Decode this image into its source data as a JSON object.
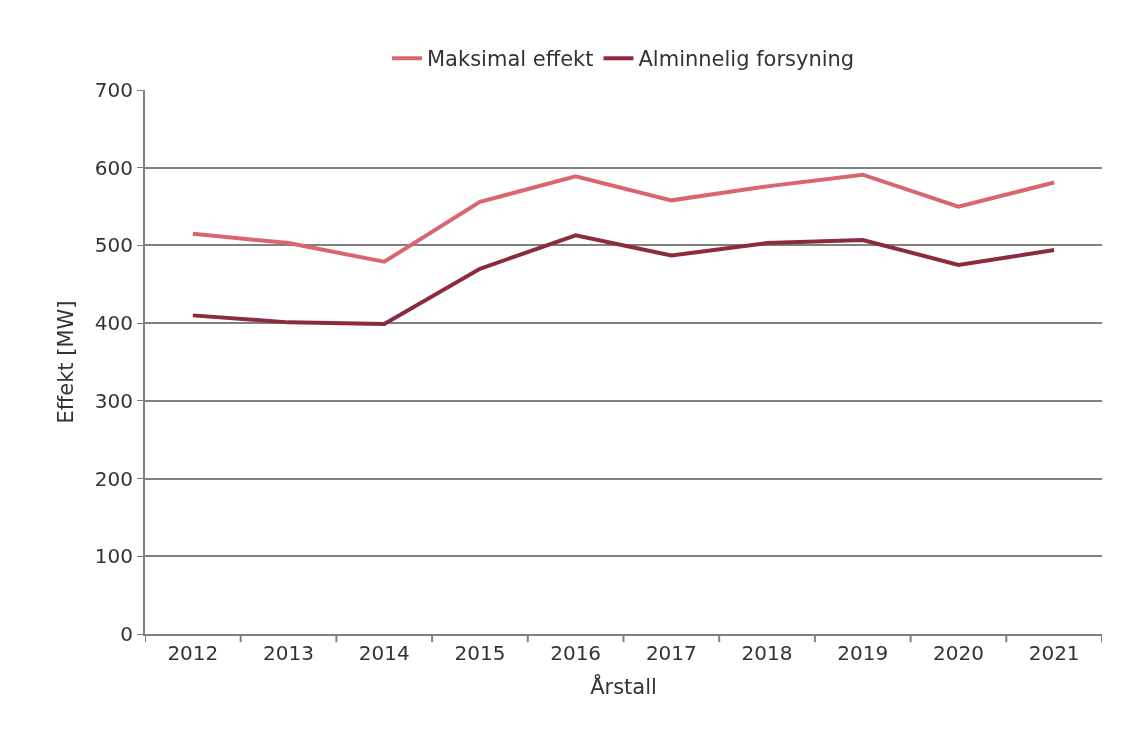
{
  "chart_data": {
    "type": "line",
    "xlabel": "Årstall",
    "ylabel": "Effekt [MW]",
    "categories": [
      "2012",
      "2013",
      "2014",
      "2015",
      "2016",
      "2017",
      "2018",
      "2019",
      "2020",
      "2021"
    ],
    "series": [
      {
        "name": "Maksimal effekt",
        "color": "#d9666f",
        "values": [
          515,
          503,
          479,
          556,
          589,
          558,
          576,
          591,
          550,
          581
        ]
      },
      {
        "name": "Alminnelig forsyning",
        "color": "#8b2c3e",
        "values": [
          410,
          401,
          399,
          470,
          513,
          487,
          503,
          507,
          475,
          494
        ]
      }
    ],
    "ylim": [
      0,
      700
    ],
    "yticks": [
      0,
      100,
      200,
      300,
      400,
      500,
      600,
      700
    ],
    "grid": "y",
    "legend": "top",
    "marker": "none",
    "line_style": "solid"
  }
}
